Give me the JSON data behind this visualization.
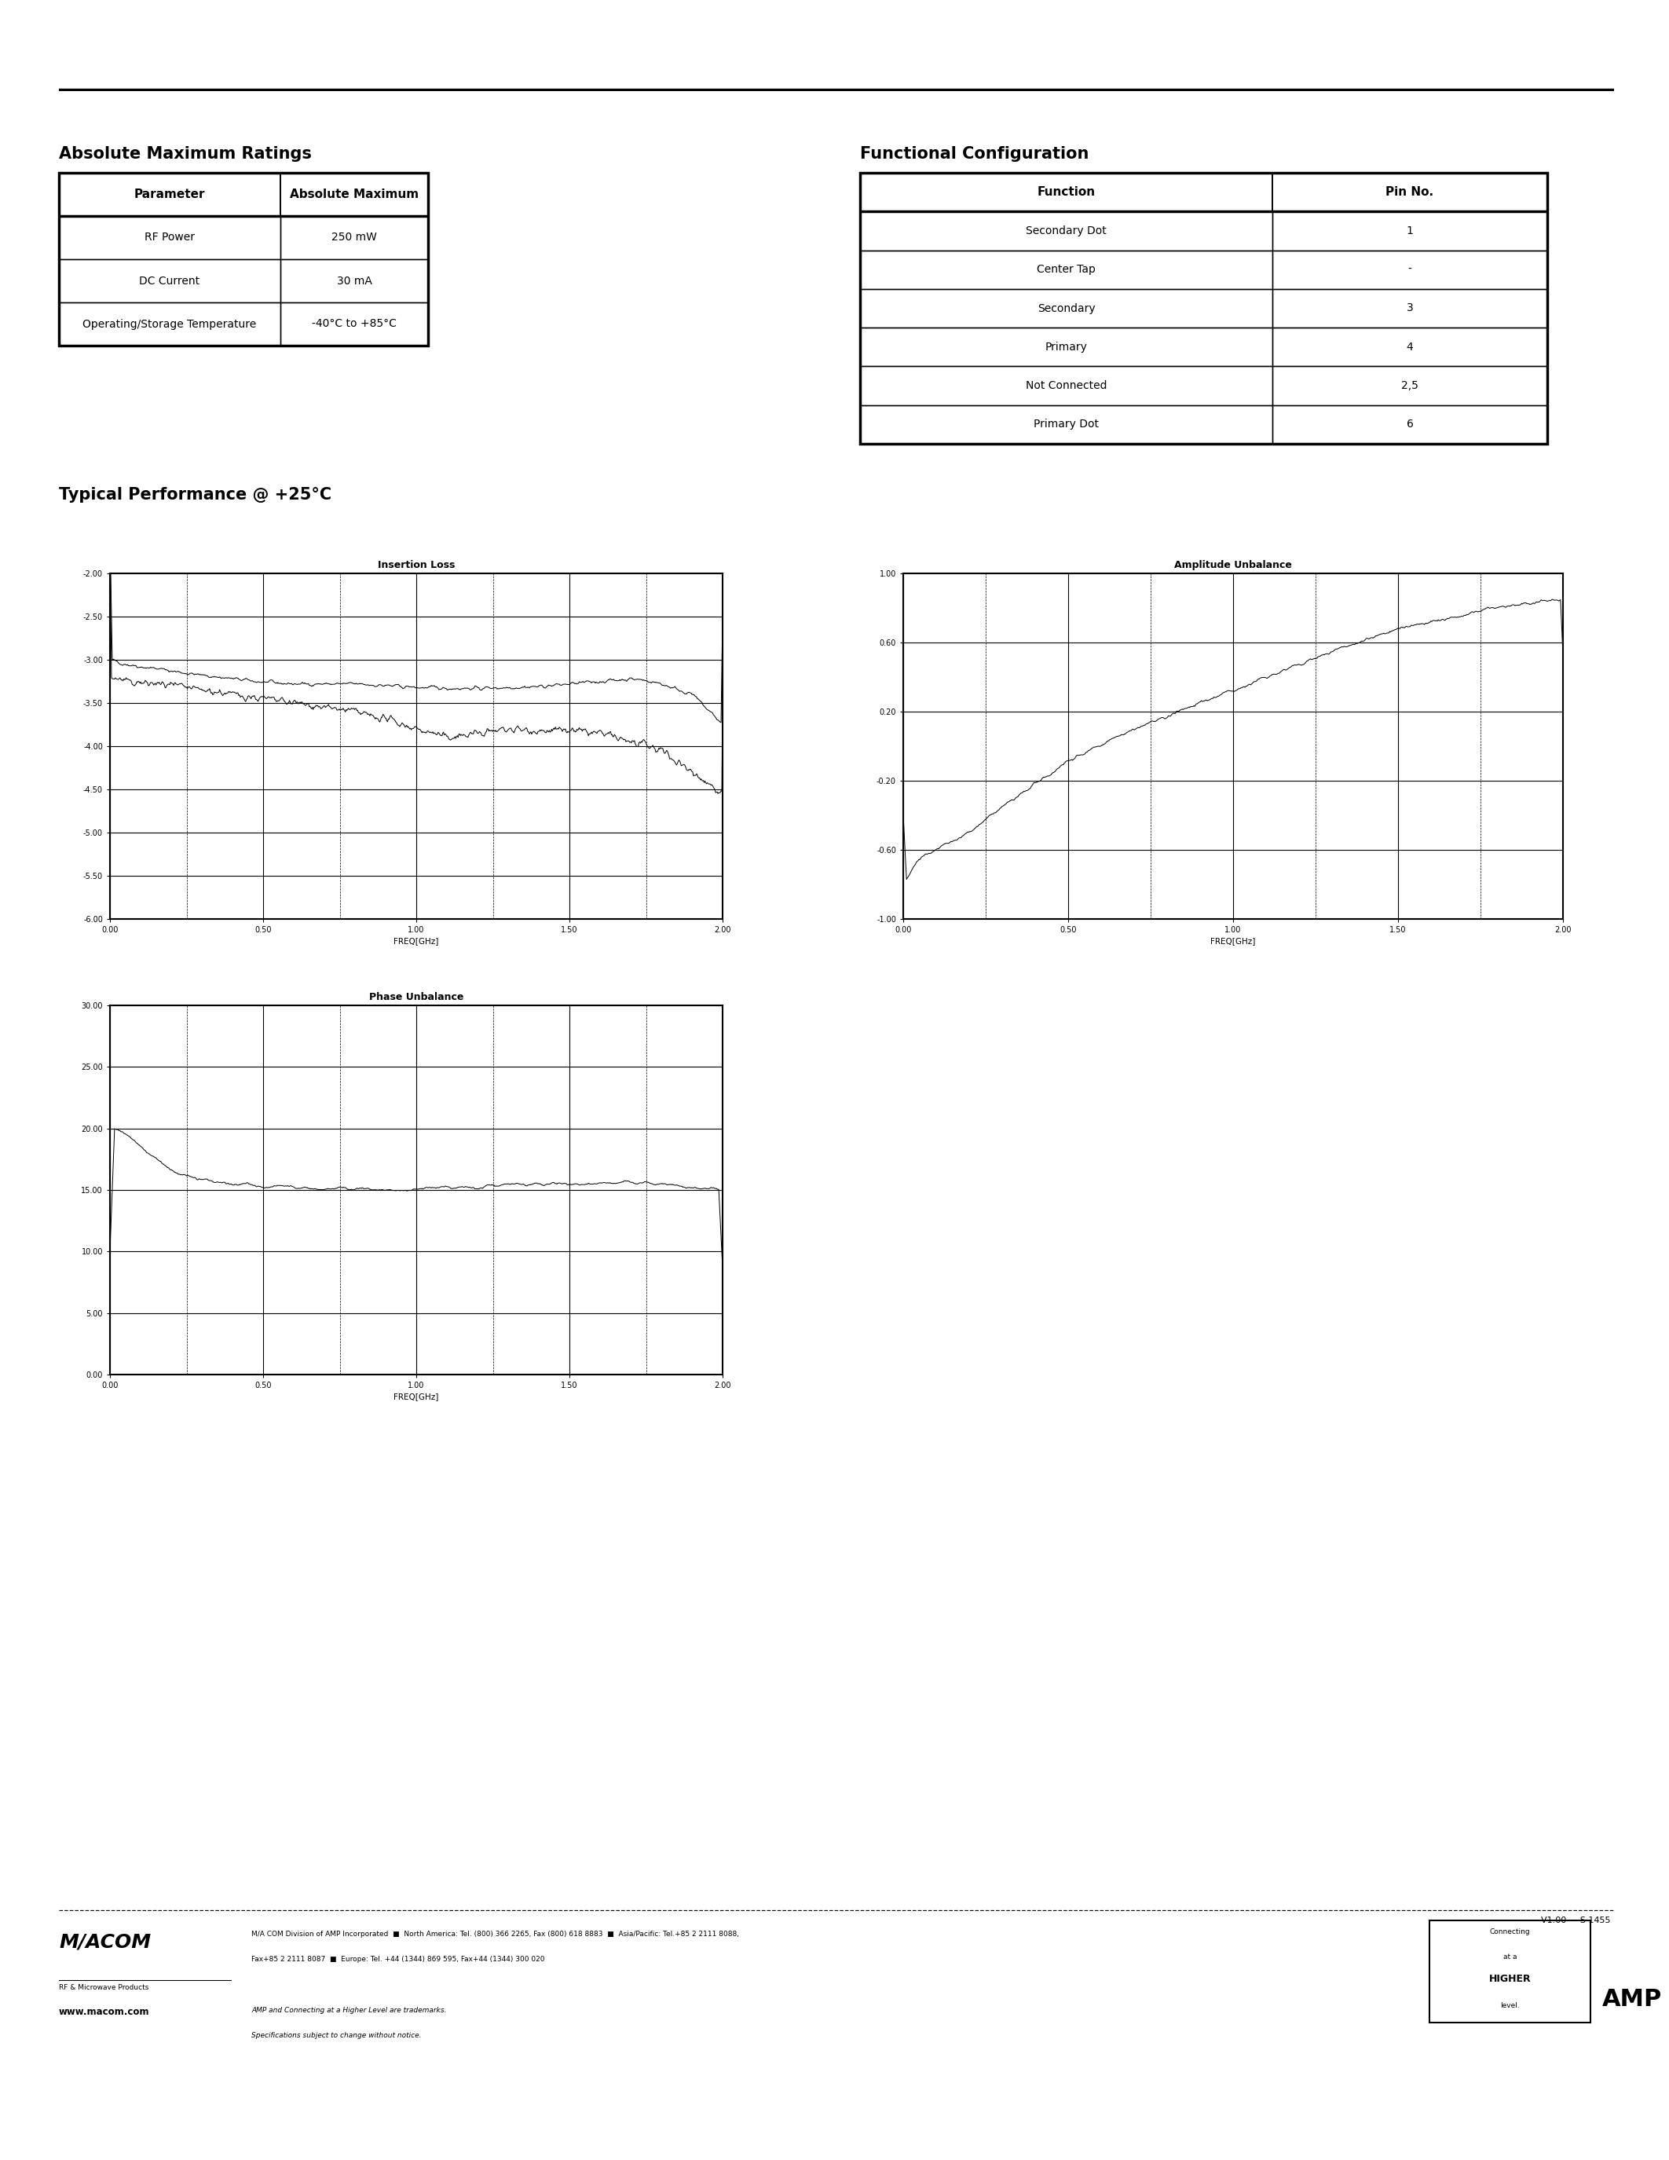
{
  "page_bg": "#ffffff",
  "section1_title": "Absolute Maximum Ratings",
  "section2_title": "Functional Configuration",
  "section3_title": "Typical Performance @ +25°C",
  "abs_max_headers": [
    "Parameter",
    "Absolute Maximum"
  ],
  "abs_max_rows": [
    [
      "RF Power",
      "250 mW"
    ],
    [
      "DC Current",
      "30 mA"
    ],
    [
      "Operating/Storage Temperature",
      "-40°C to +85°C"
    ]
  ],
  "func_config_headers": [
    "Function",
    "Pin No."
  ],
  "func_config_rows": [
    [
      "Secondary Dot",
      "1"
    ],
    [
      "Center Tap",
      "-"
    ],
    [
      "Secondary",
      "3"
    ],
    [
      "Primary",
      "4"
    ],
    [
      "Not Connected",
      "2,5"
    ],
    [
      "Primary Dot",
      "6"
    ]
  ],
  "graph1_title": "Insertion Loss",
  "graph1_xlabel": "FREQ[GHz]",
  "graph1_xlim": [
    0.0,
    2.0
  ],
  "graph1_ylim": [
    -6.0,
    -2.0
  ],
  "graph1_xticks": [
    0.0,
    0.5,
    1.0,
    1.5,
    2.0
  ],
  "graph1_yticks": [
    -2.0,
    -2.5,
    -3.0,
    -3.5,
    -4.0,
    -4.5,
    -5.0,
    -5.5,
    -6.0
  ],
  "graph1_xticklabels": [
    "0.00",
    "0.50",
    "1.00",
    "1.50",
    "2.00"
  ],
  "graph1_yticklabels": [
    "-2.00",
    "-2.50",
    "-3.00",
    "-3.50",
    "-4.00",
    "-4.50",
    "-5.00",
    "-5.50",
    "-6.00"
  ],
  "graph2_title": "Amplitude Unbalance",
  "graph2_xlabel": "FREQ[GHz]",
  "graph2_xlim": [
    0.0,
    2.0
  ],
  "graph2_ylim": [
    -1.0,
    1.0
  ],
  "graph2_xticks": [
    0.0,
    0.5,
    1.0,
    1.5,
    2.0
  ],
  "graph2_yticks": [
    1.0,
    0.6,
    0.2,
    -0.2,
    -0.6,
    -1.0
  ],
  "graph2_xticklabels": [
    "0.00",
    "0.50",
    "1.00",
    "1.50",
    "2.00"
  ],
  "graph2_yticklabels": [
    "1.00",
    "0.60",
    "0.20",
    "-0.20",
    "-0.60",
    "-1.00"
  ],
  "graph3_title": "Phase Unbalance",
  "graph3_xlabel": "FREQ[GHz]",
  "graph3_xlim": [
    0.0,
    2.0
  ],
  "graph3_ylim": [
    0.0,
    30.0
  ],
  "graph3_xticks": [
    0.0,
    0.5,
    1.0,
    1.5,
    2.0
  ],
  "graph3_yticks": [
    30.0,
    25.0,
    20.0,
    15.0,
    10.0,
    5.0,
    0.0
  ],
  "graph3_xticklabels": [
    "0.00",
    "0.50",
    "1.00",
    "1.50",
    "2.00"
  ],
  "graph3_yticklabels": [
    "30.00",
    "25.00",
    "20.00",
    "15.00",
    "10.00",
    "5.00",
    "0.00"
  ],
  "footer_version": "V1.00",
  "footer_partnum": "S 1455",
  "footer_line1": "M/A COM Division of AMP Incorporated  ■  North America: Tel. (800) 366 2265, Fax (800) 618 8883  ■  Asia/Pacific: Tel.+85 2 2111 8088,",
  "footer_line2": "Fax+85 2 2111 8087  ■  Europe: Tel. +44 (1344) 869 595, Fax+44 (1344) 300 020",
  "footer_trademark": "AMP and Connecting at a Higher Level are trademarks.",
  "footer_spec": "Specifications subject to change without notice.",
  "footer_website": "www.macom.com",
  "logo_main": "M/ACOM",
  "logo_sub": "RF & Microwave Products"
}
